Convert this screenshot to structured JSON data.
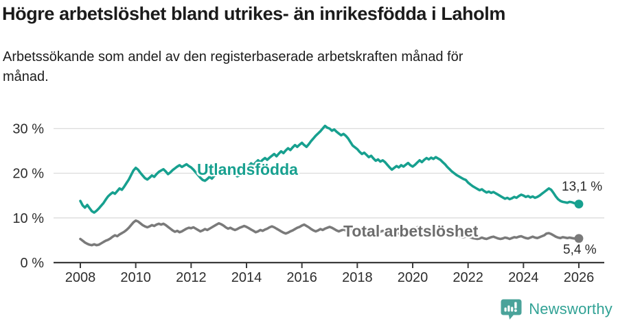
{
  "chart_data": {
    "type": "line",
    "title": "Högre arbetslöshet bland utrikes- än inrikesfödda i Laholm",
    "subtitle_lines": [
      "Arbetssökande som andel av den registerbaserade arbetskraften månad för",
      "månad."
    ],
    "x_unit": "year",
    "x_start": 2008.0,
    "x_end": 2026.0,
    "points_per_year": 12,
    "xlim": [
      2007.0,
      2026.9
    ],
    "ylim": [
      0,
      32
    ],
    "grid": "horizontal-y",
    "legend_position": "inline-labels",
    "yticks": [
      {
        "value": 0,
        "label": "0 %"
      },
      {
        "value": 10,
        "label": "10 %"
      },
      {
        "value": 20,
        "label": "20 %"
      },
      {
        "value": 30,
        "label": "30 %"
      }
    ],
    "xticks": [
      {
        "value": 2008,
        "label": "2008"
      },
      {
        "value": 2010,
        "label": "2010"
      },
      {
        "value": 2012,
        "label": "2012"
      },
      {
        "value": 2014,
        "label": "2014"
      },
      {
        "value": 2016,
        "label": "2016"
      },
      {
        "value": 2018,
        "label": "2018"
      },
      {
        "value": 2020,
        "label": "2020"
      },
      {
        "value": 2022,
        "label": "2022"
      },
      {
        "value": 2024,
        "label": "2024"
      },
      {
        "value": 2026,
        "label": "2026"
      }
    ],
    "axis_color": "#3a3a3a",
    "grid_color": "#dcdcdc",
    "tick_label_color": "#2d2d2d",
    "series": [
      {
        "name": "Utlandsfödda",
        "color": "#17a08f",
        "label_color": "#17a08f",
        "end_label": "13,1 %",
        "end_value": 13.1,
        "values": [
          13.8,
          12.8,
          12.3,
          12.9,
          12.2,
          11.5,
          11.2,
          11.6,
          12.1,
          12.7,
          13.3,
          14.1,
          14.8,
          15.3,
          15.7,
          15.4,
          16.0,
          16.6,
          16.3,
          17.0,
          17.8,
          18.6,
          19.6,
          20.6,
          21.2,
          20.8,
          20.1,
          19.5,
          18.9,
          18.6,
          19.0,
          19.5,
          19.2,
          19.8,
          20.3,
          20.6,
          20.9,
          20.4,
          19.8,
          20.2,
          20.7,
          21.1,
          21.5,
          21.8,
          21.4,
          21.7,
          22.0,
          21.6,
          21.3,
          20.8,
          20.2,
          19.6,
          19.0,
          18.5,
          18.3,
          18.7,
          19.2,
          18.8,
          19.4,
          20.0,
          20.6,
          21.2,
          20.8,
          20.2,
          19.6,
          19.9,
          20.4,
          19.8,
          19.3,
          19.6,
          20.1,
          20.5,
          21.2,
          21.7,
          22.2,
          21.8,
          22.4,
          22.9,
          22.5,
          23.0,
          23.4,
          23.0,
          23.5,
          23.9,
          24.3,
          23.8,
          24.4,
          24.9,
          24.5,
          25.1,
          25.6,
          25.2,
          25.8,
          26.3,
          25.9,
          26.4,
          26.8,
          26.3,
          25.9,
          26.5,
          27.2,
          27.8,
          28.4,
          28.9,
          29.4,
          30.0,
          30.6,
          30.2,
          30.0,
          29.5,
          29.8,
          29.3,
          28.9,
          28.5,
          28.8,
          28.4,
          27.8,
          27.0,
          26.2,
          25.8,
          25.4,
          24.8,
          24.3,
          24.6,
          24.1,
          23.6,
          23.9,
          23.3,
          22.8,
          23.1,
          22.6,
          22.9,
          22.5,
          21.9,
          21.3,
          20.8,
          21.2,
          21.6,
          21.3,
          21.8,
          21.5,
          21.9,
          22.3,
          21.8,
          21.5,
          21.9,
          22.4,
          22.9,
          22.5,
          23.0,
          23.4,
          23.1,
          23.5,
          23.2,
          23.6,
          23.3,
          23.0,
          22.5,
          22.0,
          21.4,
          20.9,
          20.4,
          20.0,
          19.6,
          19.3,
          19.0,
          18.7,
          18.5,
          17.9,
          17.5,
          17.1,
          16.8,
          16.5,
          16.2,
          16.4,
          16.0,
          15.7,
          15.9,
          15.6,
          15.8,
          15.5,
          15.2,
          14.9,
          14.6,
          14.3,
          14.5,
          14.2,
          14.4,
          14.7,
          14.5,
          14.9,
          15.2,
          15.0,
          14.7,
          14.9,
          14.6,
          14.8,
          14.5,
          14.7,
          15.0,
          15.4,
          15.8,
          16.2,
          16.6,
          16.3,
          15.6,
          14.8,
          14.2,
          13.8,
          13.6,
          13.5,
          13.4,
          13.6,
          13.5,
          13.3,
          13.2,
          13.1
        ]
      },
      {
        "name": "Total arbetslöshet",
        "color": "#7a7a7a",
        "label_color": "#6d6d6d",
        "end_label": "5,4 %",
        "end_value": 5.4,
        "values": [
          5.3,
          4.9,
          4.5,
          4.2,
          4.0,
          3.9,
          4.1,
          3.9,
          4.0,
          4.3,
          4.6,
          4.9,
          5.1,
          5.4,
          5.8,
          6.1,
          5.9,
          6.3,
          6.6,
          6.9,
          7.3,
          7.8,
          8.4,
          9.0,
          9.4,
          9.2,
          8.8,
          8.4,
          8.1,
          7.9,
          8.1,
          8.4,
          8.2,
          8.5,
          8.7,
          8.5,
          8.7,
          8.4,
          8.0,
          7.6,
          7.2,
          6.9,
          7.1,
          6.8,
          7.0,
          7.3,
          7.6,
          7.8,
          7.7,
          7.9,
          7.6,
          7.3,
          7.0,
          7.2,
          7.5,
          7.3,
          7.6,
          7.9,
          8.2,
          8.5,
          8.8,
          8.6,
          8.3,
          7.9,
          7.6,
          7.8,
          7.5,
          7.3,
          7.5,
          7.8,
          8.0,
          8.2,
          8.0,
          7.7,
          7.4,
          7.1,
          6.8,
          7.0,
          7.3,
          7.1,
          7.4,
          7.6,
          7.9,
          8.1,
          7.9,
          7.6,
          7.3,
          7.0,
          6.7,
          6.5,
          6.7,
          7.0,
          7.2,
          7.5,
          7.8,
          8.0,
          8.3,
          8.5,
          8.2,
          7.9,
          7.5,
          7.2,
          7.0,
          7.2,
          7.5,
          7.3,
          7.6,
          7.8,
          8.0,
          7.8,
          7.5,
          7.2,
          7.0,
          7.2,
          7.4,
          7.2,
          7.0,
          7.3,
          7.5,
          7.7,
          7.5,
          7.2,
          7.0,
          6.8,
          6.5,
          6.3,
          6.5,
          6.3,
          6.5,
          6.7,
          6.9,
          7.1,
          6.9,
          6.7,
          6.5,
          6.3,
          6.5,
          6.7,
          6.5,
          6.7,
          6.9,
          6.8,
          7.0,
          7.2,
          7.4,
          7.6,
          7.9,
          8.1,
          7.8,
          7.6,
          7.8,
          7.6,
          7.4,
          7.2,
          7.4,
          7.6,
          7.4,
          7.2,
          7.0,
          6.8,
          6.6,
          6.4,
          6.2,
          6.0,
          5.9,
          5.8,
          5.7,
          5.8,
          5.9,
          5.7,
          5.5,
          5.4,
          5.3,
          5.4,
          5.6,
          5.4,
          5.3,
          5.5,
          5.7,
          5.8,
          5.6,
          5.4,
          5.3,
          5.4,
          5.6,
          5.5,
          5.3,
          5.5,
          5.7,
          5.6,
          5.8,
          5.9,
          5.7,
          5.5,
          5.4,
          5.6,
          5.8,
          5.6,
          5.5,
          5.7,
          5.9,
          6.1,
          6.5,
          6.6,
          6.4,
          6.1,
          5.8,
          5.6,
          5.5,
          5.7,
          5.6,
          5.5,
          5.6,
          5.5,
          5.4,
          5.5,
          5.4
        ]
      }
    ]
  },
  "footer": {
    "brand": "Newsworthy",
    "brand_color": "#31a295",
    "logo_icon": "newsworthy-pin-barchart-icon",
    "logo_color": "#4aa39a"
  }
}
